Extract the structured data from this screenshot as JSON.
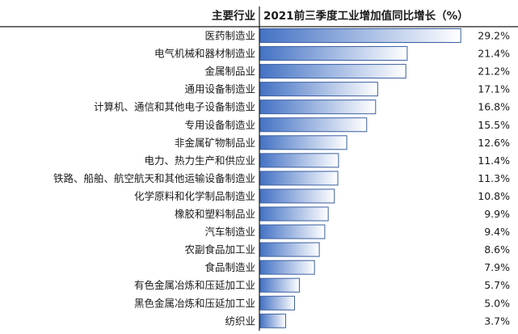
{
  "chart_data": {
    "type": "bar",
    "orientation": "horizontal",
    "category_header": "主要行业",
    "title": "2021前三季度工业增加值同比增长（%）",
    "categories": [
      "医药制造业",
      "电气机械和器材制造业",
      "金属制品业",
      "通用设备制造业",
      "计算机、通信和其他电子设备制造业",
      "专用设备制造业",
      "非金属矿物制品业",
      "电力、热力生产和供应业",
      "铁路、船舶、航空航天和其他运输设备制造业",
      "化学原料和化学制品制造业",
      "橡胶和塑料制品业",
      "汽车制造业",
      "农副食品加工业",
      "食品制造业",
      "有色金属冶炼和压延加工业",
      "黑色金属冶炼和压延加工业",
      "纺织业"
    ],
    "values": [
      29.2,
      21.4,
      21.2,
      17.1,
      16.8,
      15.5,
      12.6,
      11.4,
      11.3,
      10.8,
      9.9,
      9.4,
      8.6,
      7.9,
      5.7,
      5.0,
      3.7
    ],
    "value_labels": [
      "29.2%",
      "21.4%",
      "21.2%",
      "17.1%",
      "16.8%",
      "15.5%",
      "12.6%",
      "11.4%",
      "11.3%",
      "10.8%",
      "9.9%",
      "9.4%",
      "8.6%",
      "7.9%",
      "5.7%",
      "5.0%",
      "3.7%"
    ],
    "xlim": [
      0,
      30
    ],
    "grid": false,
    "colors": {
      "bar_dark": "#4472c4",
      "bar_light": "#ffffff",
      "bar_border": "#3a5fa0"
    }
  }
}
